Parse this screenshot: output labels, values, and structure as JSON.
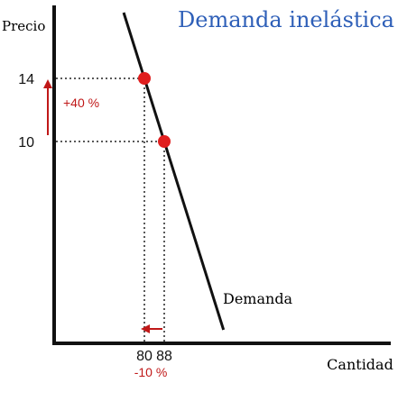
{
  "chart_data": {
    "type": "line",
    "title": "Demanda inelástica",
    "ylabel": "Precio",
    "xlabel": "Cantidad",
    "series": [
      {
        "name": "Demanda",
        "points": [
          {
            "x": 80,
            "y": 14
          },
          {
            "x": 88,
            "y": 10
          }
        ]
      }
    ],
    "highlighted_points": [
      {
        "x": 80,
        "y": 14
      },
      {
        "x": 88,
        "y": 10
      }
    ],
    "x_ticks": [
      "80",
      "88"
    ],
    "y_ticks": [
      "14",
      "10"
    ],
    "annotations": {
      "price_change": "+40 %",
      "quantity_change": "-10 %"
    },
    "grid": false
  },
  "colors": {
    "title": "#2e5fb8",
    "axis": "#111111",
    "curve": "#111111",
    "point": "#e01e1e",
    "annotation": "#c01818",
    "guide": "#222222"
  }
}
